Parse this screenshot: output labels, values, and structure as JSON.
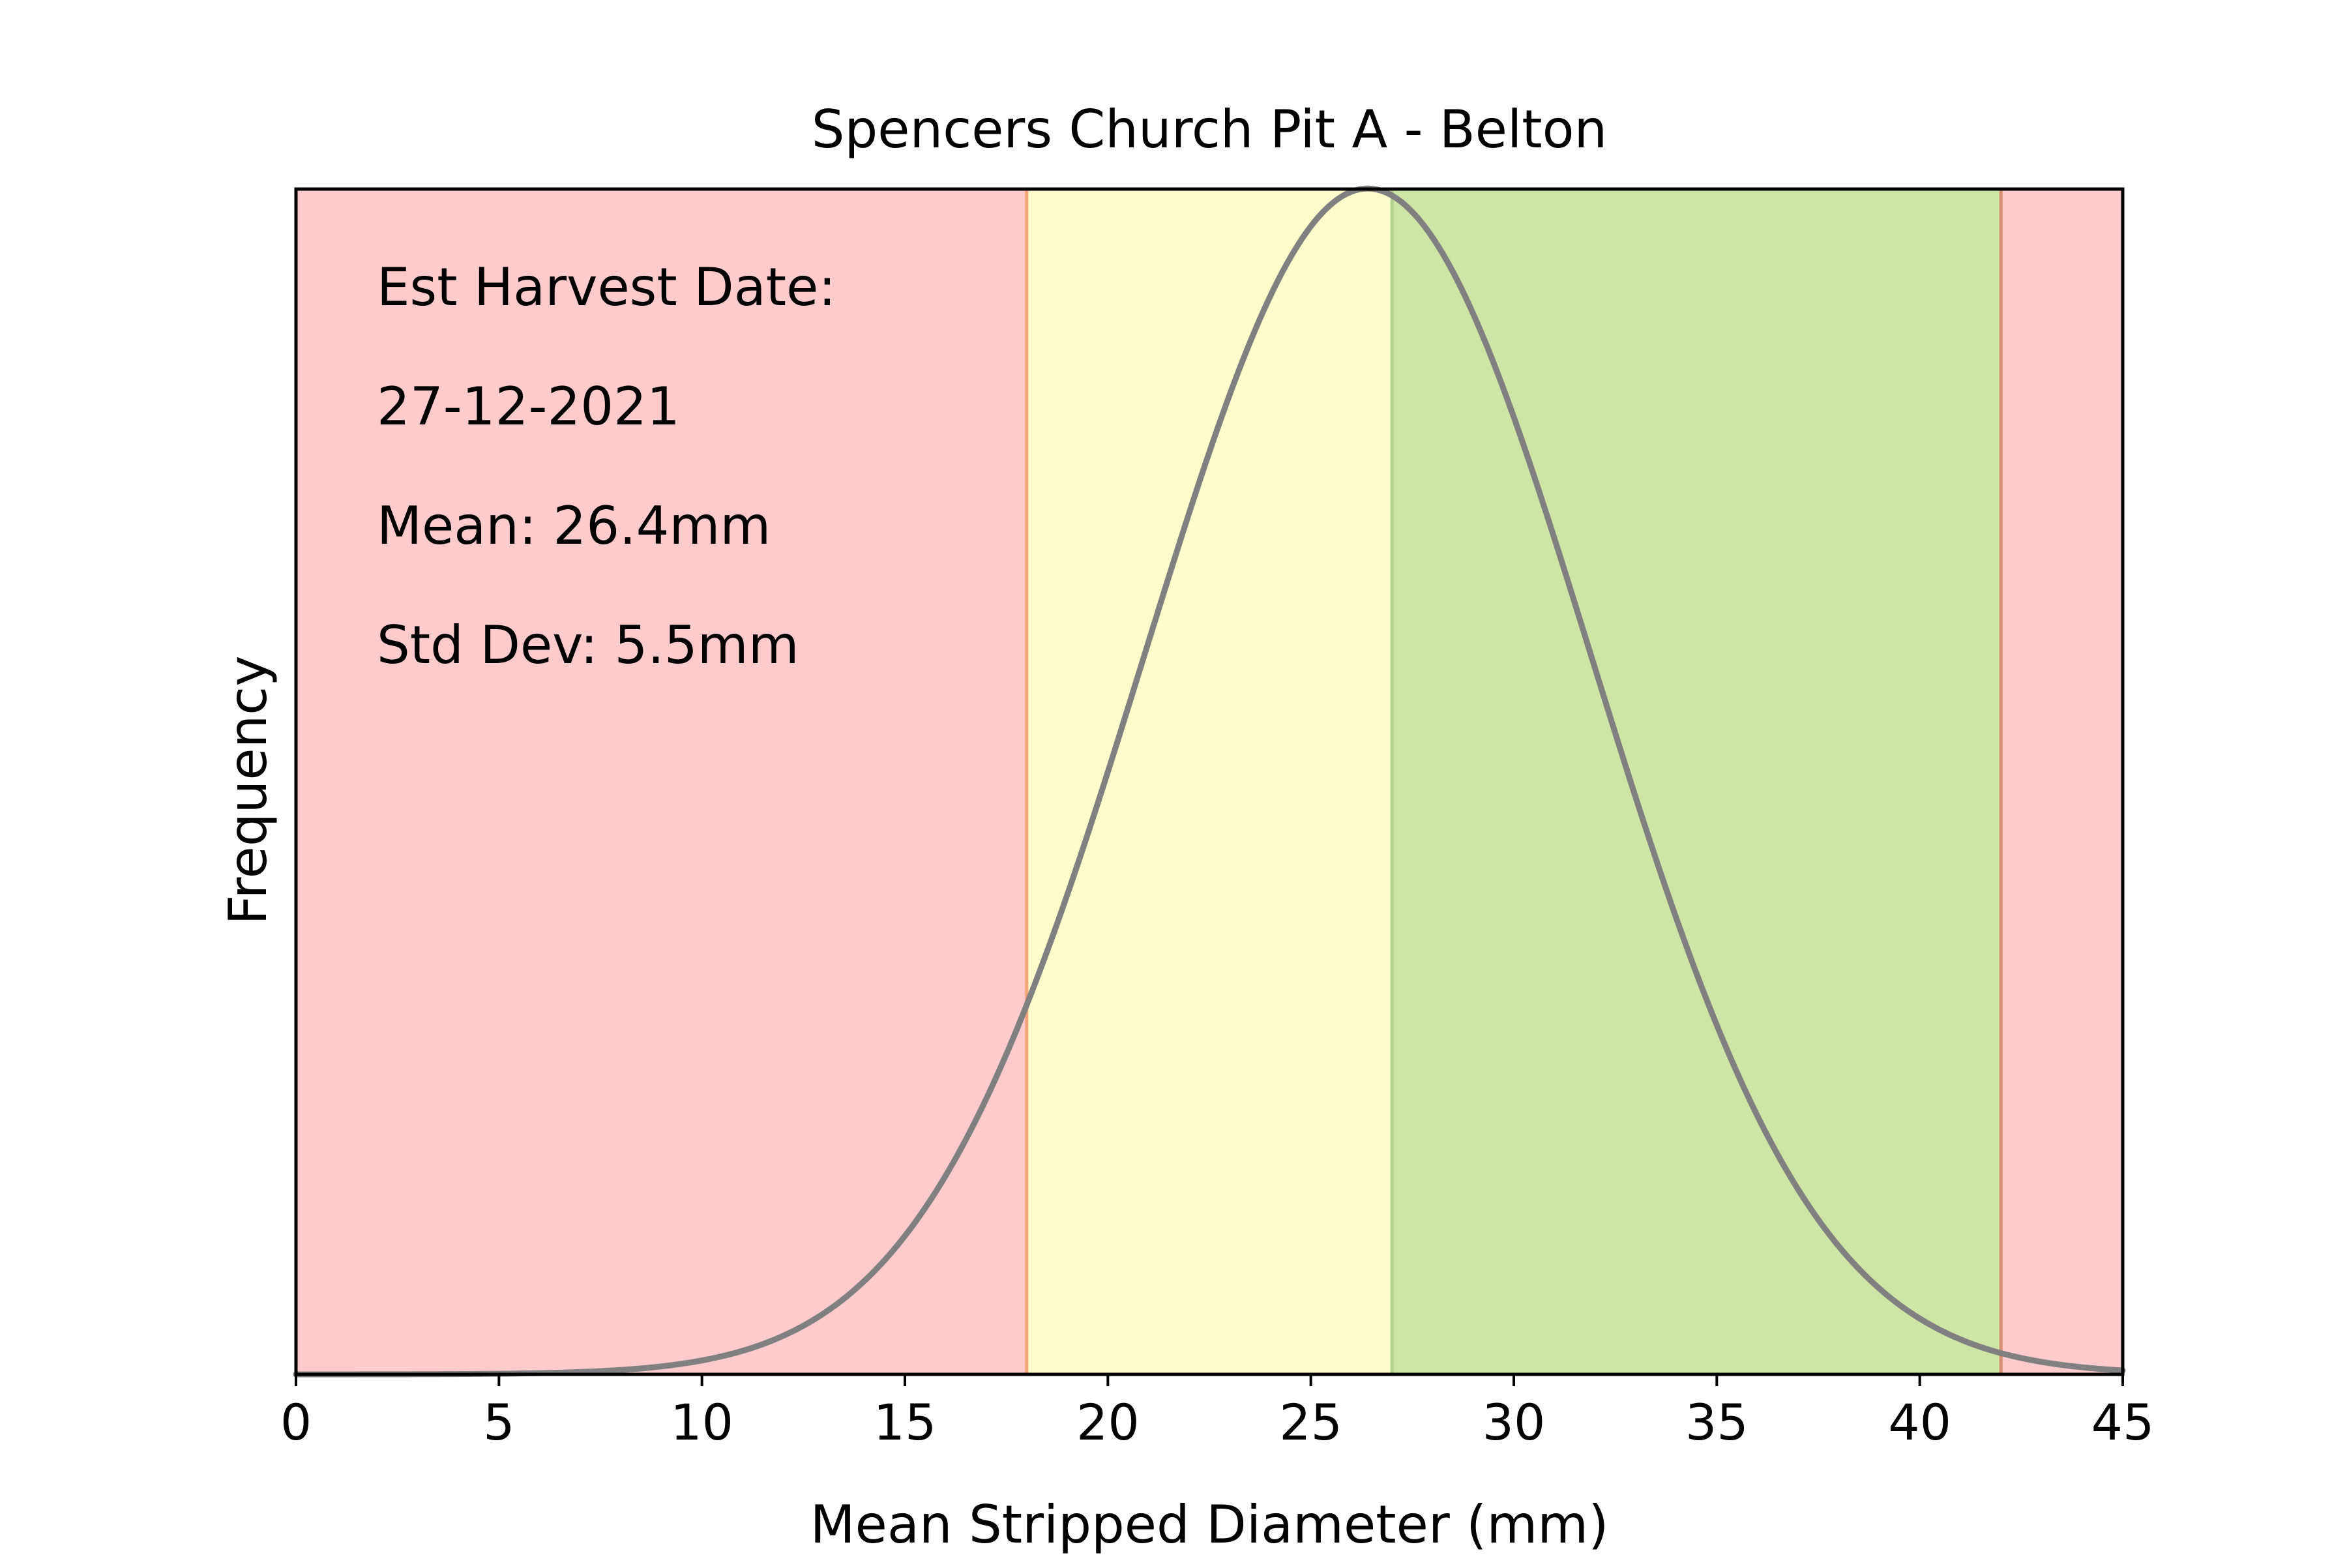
{
  "chart_data": {
    "type": "line",
    "title": "Spencers Church Pit A - Belton",
    "xlabel": "Mean Stripped Diameter (mm)",
    "ylabel": "Frequency",
    "xlim": [
      0,
      45
    ],
    "ylim": [
      0,
      0.0725
    ],
    "x_ticks": [
      0,
      5,
      10,
      15,
      20,
      25,
      30,
      35,
      40,
      45
    ],
    "y_ticks": [],
    "grid": false,
    "legend": "none",
    "annotations": [
      "Est Harvest Date:",
      "27-12-2021",
      "Mean: 26.4mm",
      "Std Dev: 5.5mm"
    ],
    "regions": [
      {
        "from": 0,
        "to": 18,
        "color": "#fdcbcb"
      },
      {
        "from": 18,
        "to": 27,
        "color": "#fefccb"
      },
      {
        "from": 27,
        "to": 42,
        "color": "#cde5a5"
      },
      {
        "from": 42,
        "to": 45,
        "color": "#fdcbcb"
      }
    ],
    "boundary_lines": [
      {
        "x": 18,
        "color": "#f5a47a"
      },
      {
        "x": 27,
        "color": "#b0d08c"
      },
      {
        "x": 42,
        "color": "#d49070"
      }
    ],
    "series": [
      {
        "distribution": "normal",
        "mean": 26.4,
        "std": 5.5,
        "color": "#808080",
        "x_range": [
          0,
          45
        ]
      }
    ]
  }
}
